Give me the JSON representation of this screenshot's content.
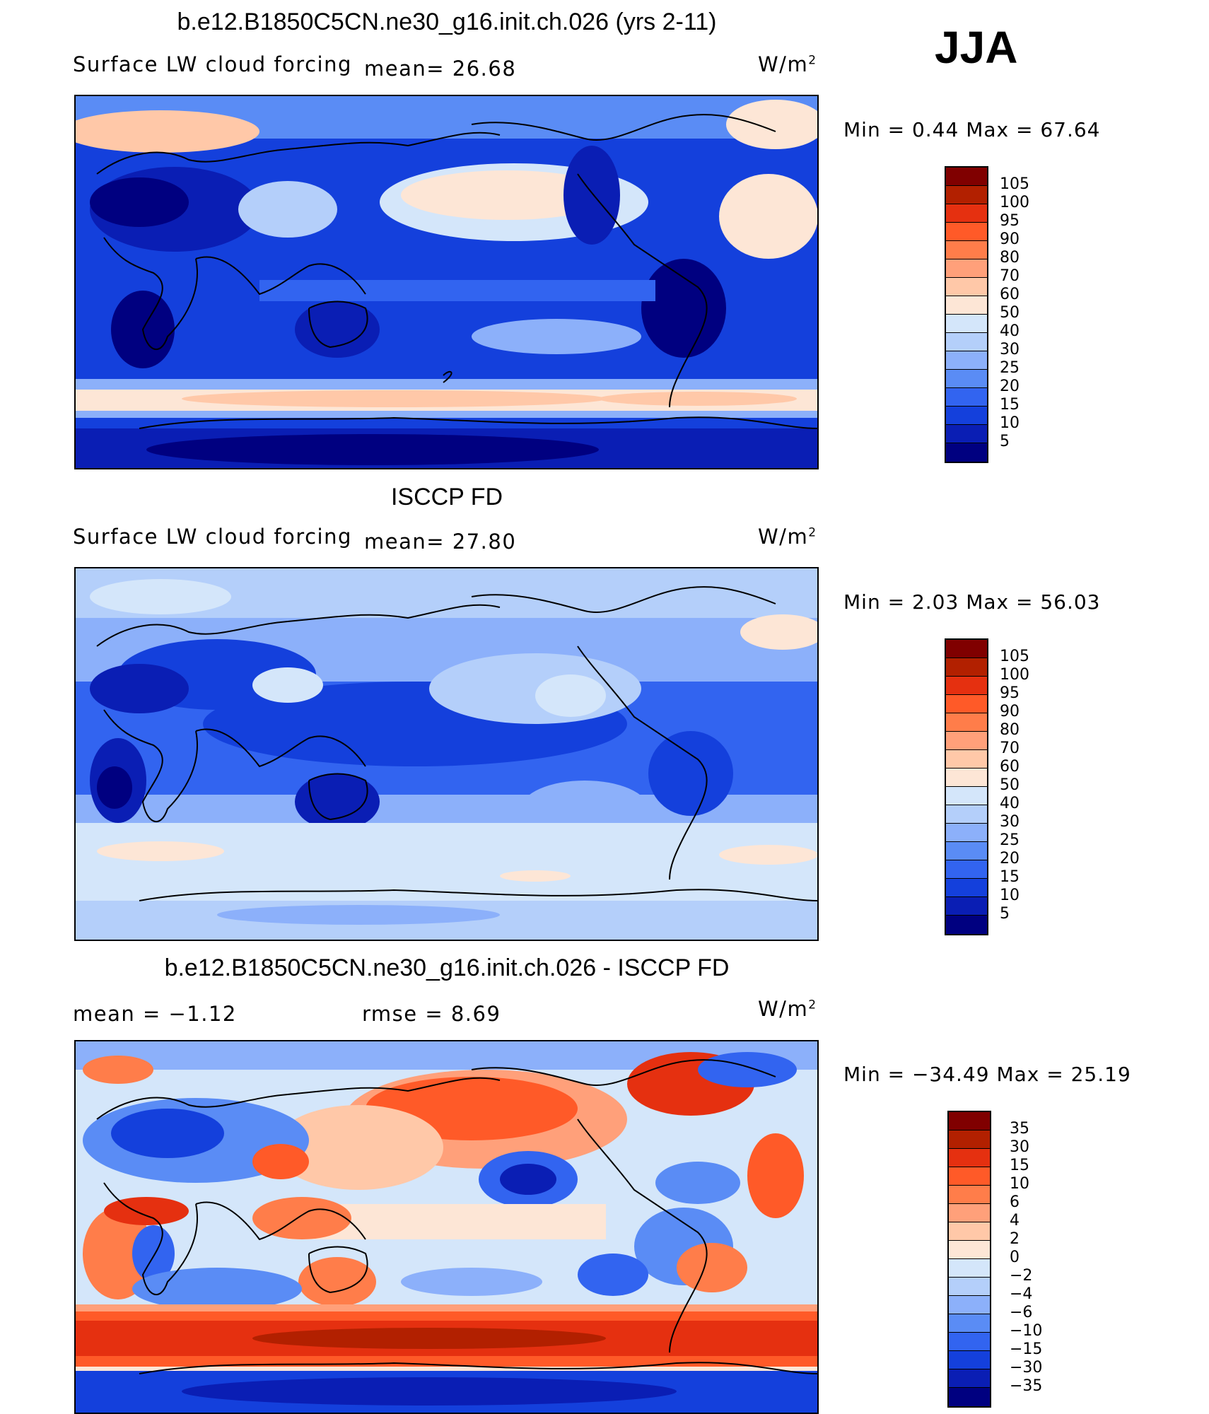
{
  "season": "JJA",
  "units": "W/m",
  "units_exp": "2",
  "panels": [
    {
      "title": "b.e12.B1850C5CN.ne30_g16.init.ch.026 (yrs 2-11)",
      "left_label": "Surface LW cloud forcing",
      "mid_label": "mean=   26.68",
      "minmax": "Min =    0.44 Max =   67.64",
      "levels": [
        "105",
        "100",
        "95",
        "90",
        "80",
        "70",
        "60",
        "50",
        "40",
        "30",
        "25",
        "20",
        "15",
        "10",
        "5"
      ],
      "colors": [
        "#800000",
        "#b22000",
        "#e53010",
        "#ff5a28",
        "#ff7d4a",
        "#ffa07a",
        "#ffc8a8",
        "#fde6d6",
        "#d4e6fa",
        "#b4cffa",
        "#8cb0fa",
        "#5a8cf5",
        "#3264f0",
        "#1440dc",
        "#0a1eb4",
        "#000080"
      ]
    },
    {
      "title": "ISCCP FD",
      "left_label": "Surface LW cloud forcing",
      "mid_label": "mean=   27.80",
      "minmax": "Min =    2.03 Max =   56.03",
      "levels": [
        "105",
        "100",
        "95",
        "90",
        "80",
        "70",
        "60",
        "50",
        "40",
        "30",
        "25",
        "20",
        "15",
        "10",
        "5"
      ],
      "colors": [
        "#800000",
        "#b22000",
        "#e53010",
        "#ff5a28",
        "#ff7d4a",
        "#ffa07a",
        "#ffc8a8",
        "#fde6d6",
        "#d4e6fa",
        "#b4cffa",
        "#8cb0fa",
        "#5a8cf5",
        "#3264f0",
        "#1440dc",
        "#0a1eb4",
        "#000080"
      ]
    },
    {
      "title": "b.e12.B1850C5CN.ne30_g16.init.ch.026 - ISCCP FD",
      "left_label": "mean =   −1.12",
      "mid_label": "rmse =    8.69",
      "minmax": "Min = −34.49 Max =   25.19",
      "levels": [
        "35",
        "30",
        "15",
        "10",
        "6",
        "4",
        "2",
        "0",
        "−2",
        "−4",
        "−6",
        "−10",
        "−15",
        "−30",
        "−35"
      ],
      "colors": [
        "#800000",
        "#b22000",
        "#e53010",
        "#ff5a28",
        "#ff7d4a",
        "#ffa07a",
        "#ffc8a8",
        "#fde6d6",
        "#d4e6fa",
        "#b4cffa",
        "#8cb0fa",
        "#5a8cf5",
        "#3264f0",
        "#1440dc",
        "#0a1eb4",
        "#000080"
      ]
    }
  ]
}
